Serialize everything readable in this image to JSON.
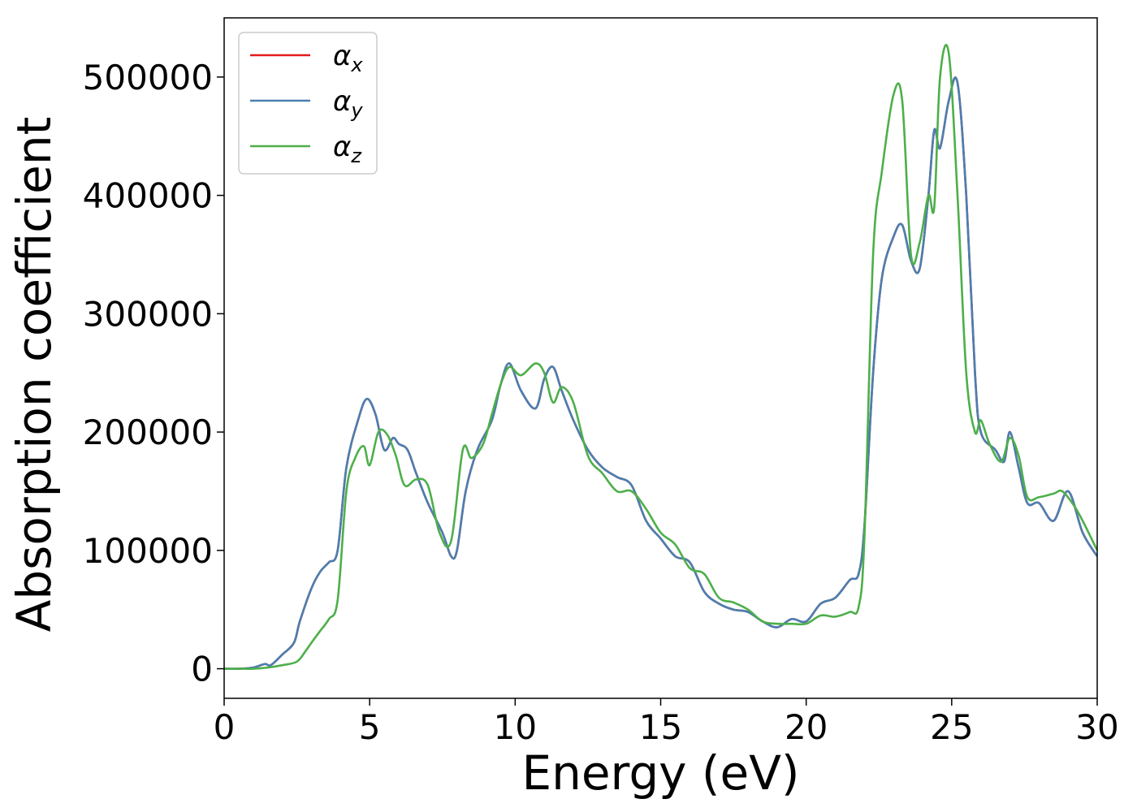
{
  "chart_data": {
    "type": "line",
    "xlabel": "Energy (eV)",
    "ylabel": "Absorption coefficient",
    "xlim": [
      0,
      30
    ],
    "ylim": [
      -25000,
      550000
    ],
    "xticks": [
      0,
      5,
      10,
      15,
      20,
      25,
      30
    ],
    "yticks": [
      0,
      100000,
      200000,
      300000,
      400000,
      500000
    ],
    "grid": false,
    "legend_position": "top-left",
    "series": [
      {
        "name": "α",
        "subscript": "x",
        "color": "#e41a1c",
        "x": [
          0,
          0.5,
          1.0,
          1.4,
          1.6,
          2.0,
          2.4,
          2.6,
          3.0,
          3.3,
          3.6,
          3.9,
          4.2,
          4.6,
          4.9,
          5.2,
          5.5,
          5.8,
          6.0,
          6.3,
          6.6,
          7.0,
          7.5,
          7.8,
          8.0,
          8.3,
          8.7,
          9.2,
          9.5,
          9.8,
          10.2,
          10.7,
          11.0,
          11.3,
          11.6,
          12.0,
          12.5,
          13.0,
          13.5,
          14.0,
          14.5,
          15.0,
          15.5,
          16.0,
          16.5,
          17.0,
          17.5,
          18.0,
          18.5,
          19.0,
          19.5,
          20.0,
          20.5,
          21.0,
          21.5,
          21.8,
          22.0,
          22.3,
          22.6,
          23.0,
          23.3,
          23.6,
          23.9,
          24.2,
          24.4,
          24.6,
          24.9,
          25.2,
          25.5,
          25.8,
          26.0,
          26.5,
          26.8,
          27.0,
          27.3,
          27.6,
          28.0,
          28.5,
          29.0,
          29.5,
          30.0
        ],
        "y": [
          0,
          0,
          1000,
          4000,
          3000,
          12000,
          22000,
          40000,
          68000,
          82000,
          90000,
          100000,
          170000,
          210000,
          228000,
          215000,
          185000,
          195000,
          190000,
          185000,
          165000,
          140000,
          115000,
          95000,
          100000,
          150000,
          185000,
          210000,
          240000,
          258000,
          235000,
          220000,
          245000,
          255000,
          235000,
          210000,
          185000,
          170000,
          162000,
          155000,
          125000,
          110000,
          95000,
          90000,
          65000,
          55000,
          50000,
          48000,
          40000,
          35000,
          42000,
          40000,
          55000,
          60000,
          75000,
          80000,
          120000,
          250000,
          330000,
          365000,
          375000,
          345000,
          338000,
          400000,
          455000,
          440000,
          480000,
          495000,
          400000,
          250000,
          200000,
          185000,
          175000,
          200000,
          170000,
          140000,
          140000,
          125000,
          150000,
          115000,
          95000
        ]
      },
      {
        "name": "α",
        "subscript": "y",
        "color": "#4a7fb0",
        "x": [
          0,
          0.5,
          1.0,
          1.4,
          1.6,
          2.0,
          2.4,
          2.6,
          3.0,
          3.3,
          3.6,
          3.9,
          4.2,
          4.6,
          4.9,
          5.2,
          5.5,
          5.8,
          6.0,
          6.3,
          6.6,
          7.0,
          7.5,
          7.8,
          8.0,
          8.3,
          8.7,
          9.2,
          9.5,
          9.8,
          10.2,
          10.7,
          11.0,
          11.3,
          11.6,
          12.0,
          12.5,
          13.0,
          13.5,
          14.0,
          14.5,
          15.0,
          15.5,
          16.0,
          16.5,
          17.0,
          17.5,
          18.0,
          18.5,
          19.0,
          19.5,
          20.0,
          20.5,
          21.0,
          21.5,
          21.8,
          22.0,
          22.3,
          22.6,
          23.0,
          23.3,
          23.6,
          23.9,
          24.2,
          24.4,
          24.6,
          24.9,
          25.2,
          25.5,
          25.8,
          26.0,
          26.5,
          26.8,
          27.0,
          27.3,
          27.6,
          28.0,
          28.5,
          29.0,
          29.5,
          30.0
        ],
        "y": [
          0,
          0,
          1000,
          4000,
          3000,
          12000,
          22000,
          40000,
          68000,
          82000,
          90000,
          100000,
          170000,
          210000,
          228000,
          215000,
          185000,
          195000,
          190000,
          185000,
          165000,
          140000,
          115000,
          95000,
          100000,
          150000,
          185000,
          210000,
          240000,
          258000,
          235000,
          220000,
          245000,
          255000,
          235000,
          210000,
          185000,
          170000,
          162000,
          155000,
          125000,
          110000,
          95000,
          90000,
          65000,
          55000,
          50000,
          48000,
          40000,
          35000,
          42000,
          40000,
          55000,
          60000,
          75000,
          80000,
          120000,
          250000,
          330000,
          365000,
          375000,
          345000,
          338000,
          400000,
          455000,
          440000,
          480000,
          495000,
          400000,
          250000,
          200000,
          185000,
          175000,
          200000,
          170000,
          140000,
          140000,
          125000,
          150000,
          115000,
          95000
        ]
      },
      {
        "name": "α",
        "subscript": "z",
        "color": "#4daf4a",
        "x": [
          0,
          0.5,
          1.0,
          1.5,
          2.0,
          2.5,
          2.8,
          3.0,
          3.3,
          3.6,
          3.9,
          4.2,
          4.5,
          4.8,
          5.0,
          5.3,
          5.6,
          5.9,
          6.2,
          6.6,
          7.0,
          7.4,
          7.8,
          8.2,
          8.5,
          8.9,
          9.2,
          9.5,
          9.8,
          10.2,
          10.7,
          11.0,
          11.3,
          11.6,
          12.0,
          12.5,
          13.0,
          13.5,
          14.0,
          14.5,
          15.0,
          15.5,
          16.0,
          16.5,
          17.0,
          17.5,
          18.0,
          18.5,
          19.0,
          19.5,
          20.0,
          20.5,
          21.0,
          21.5,
          21.8,
          22.0,
          22.3,
          22.6,
          23.0,
          23.3,
          23.6,
          23.9,
          24.2,
          24.4,
          24.6,
          24.9,
          25.2,
          25.5,
          25.8,
          26.0,
          26.3,
          26.7,
          27.0,
          27.3,
          27.6,
          28.0,
          28.5,
          28.8,
          29.2,
          29.5,
          30.0
        ],
        "y": [
          0,
          0,
          0,
          1000,
          3000,
          6000,
          15000,
          22000,
          32000,
          42000,
          58000,
          150000,
          178000,
          188000,
          172000,
          200000,
          198000,
          180000,
          155000,
          160000,
          155000,
          115000,
          108000,
          185000,
          178000,
          190000,
          215000,
          240000,
          255000,
          248000,
          258000,
          250000,
          225000,
          238000,
          225000,
          180000,
          165000,
          150000,
          150000,
          135000,
          115000,
          105000,
          85000,
          80000,
          60000,
          56000,
          50000,
          40000,
          38000,
          38000,
          38000,
          45000,
          44000,
          48000,
          52000,
          110000,
          350000,
          420000,
          485000,
          480000,
          350000,
          360000,
          400000,
          390000,
          500000,
          520000,
          400000,
          250000,
          200000,
          210000,
          190000,
          175000,
          195000,
          180000,
          145000,
          145000,
          148000,
          150000,
          138000,
          125000,
          100000
        ]
      }
    ]
  }
}
